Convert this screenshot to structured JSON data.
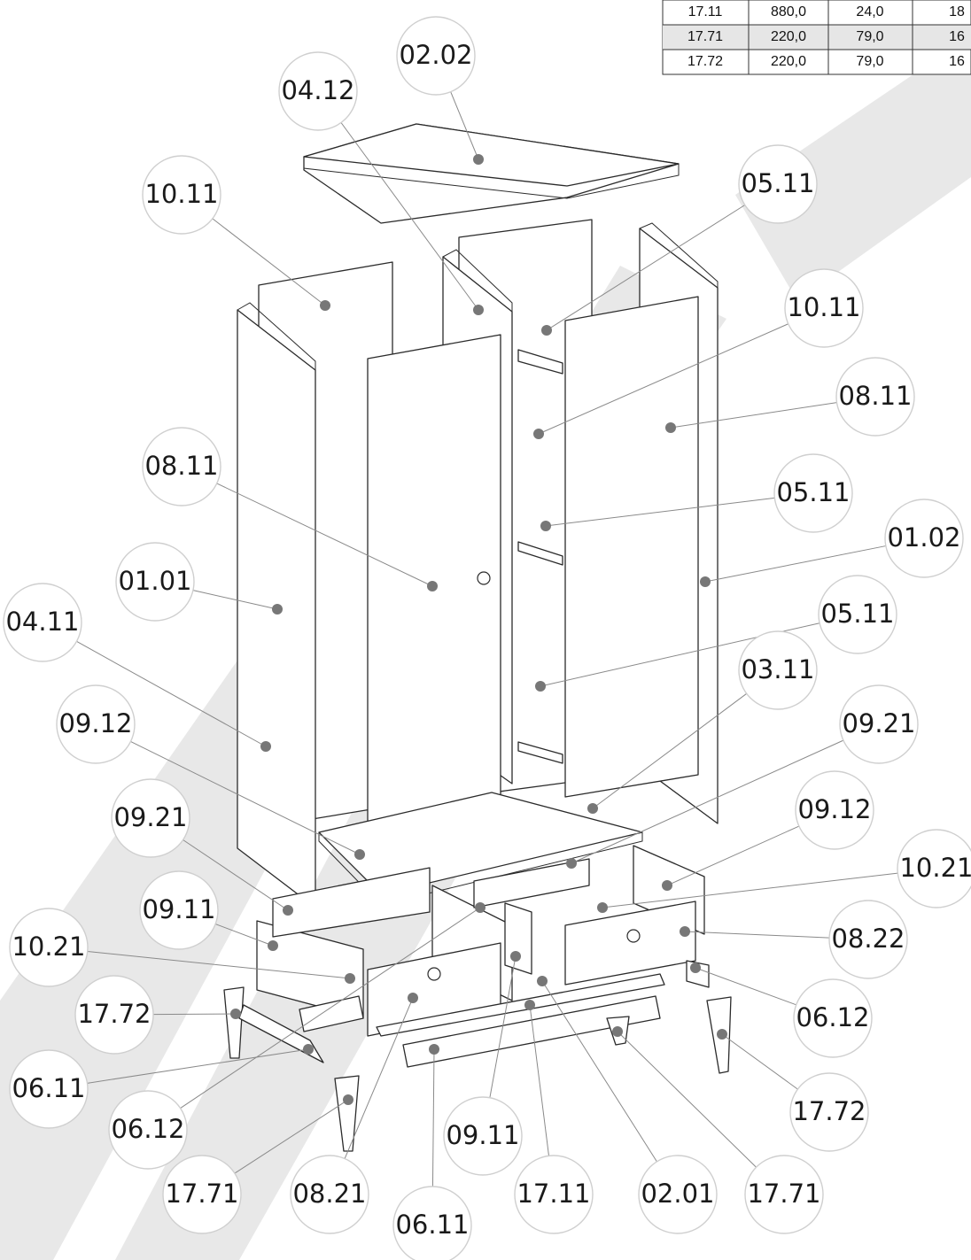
{
  "parts_table": {
    "rows": [
      [
        "17.11",
        "880,0",
        "24,0",
        "18"
      ],
      [
        "17.71",
        "220,0",
        "79,0",
        "16"
      ],
      [
        "17.72",
        "220,0",
        "79,0",
        "16"
      ]
    ]
  },
  "callouts": [
    "02.02",
    "04.12",
    "10.11",
    "05.11",
    "10.11",
    "08.11",
    "08.11",
    "05.11",
    "01.02",
    "01.01",
    "04.11",
    "05.11",
    "03.11",
    "09.12",
    "09.21",
    "09.21",
    "09.12",
    "10.21",
    "09.11",
    "08.22",
    "10.21",
    "17.72",
    "06.12",
    "06.11",
    "17.72",
    "06.12",
    "09.11",
    "17.71",
    "08.21",
    "06.11",
    "17.11",
    "02.01",
    "17.71"
  ],
  "watermark": {
    "color": "#d6d6d6"
  }
}
